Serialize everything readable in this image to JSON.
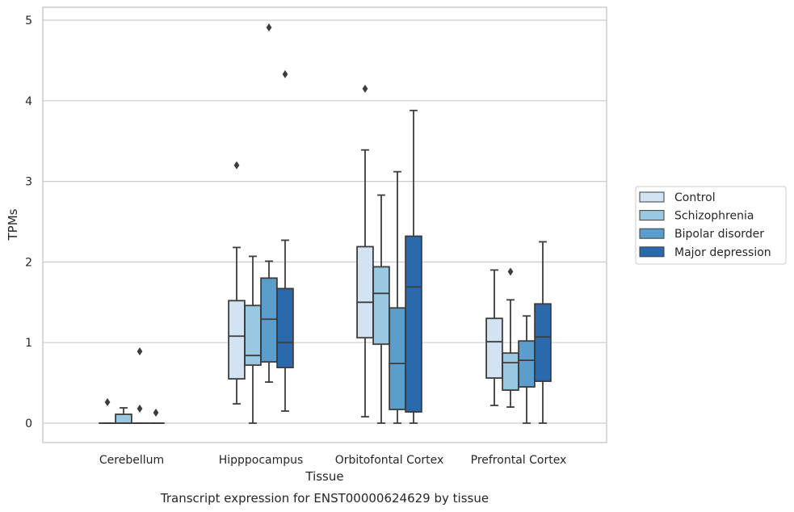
{
  "caption": "Transcript expression for ENST00000624629 by tissue",
  "chart_data": {
    "type": "box",
    "title": "",
    "xlabel": "Tissue",
    "ylabel": "TPMs",
    "ylim": [
      -0.23,
      5.17
    ],
    "yticks": [
      "0",
      "1",
      "2",
      "3",
      "4",
      "5"
    ],
    "grid": true,
    "legend_position": "right",
    "categories": [
      "Cerebellum",
      "Hipppocampus",
      "Orbitofontal Cortex",
      "Prefrontal Cortex"
    ],
    "series": [
      {
        "name": "Control",
        "color": "#d2e3f3",
        "boxes": [
          {
            "whisker_low": 0,
            "q1": 0,
            "median": 0,
            "q3": 0,
            "whisker_high": 0,
            "outliers": [
              0.26
            ]
          },
          {
            "whisker_low": 0.24,
            "q1": 0.55,
            "median": 1.08,
            "q3": 1.52,
            "whisker_high": 2.18,
            "outliers": [
              3.2
            ]
          },
          {
            "whisker_low": 0.08,
            "q1": 1.06,
            "median": 1.5,
            "q3": 2.19,
            "whisker_high": 3.39,
            "outliers": [
              4.15
            ]
          },
          {
            "whisker_low": 0.22,
            "q1": 0.56,
            "median": 1.01,
            "q3": 1.3,
            "whisker_high": 1.9,
            "outliers": []
          }
        ]
      },
      {
        "name": "Schizophrenia",
        "color": "#9ac8e0",
        "boxes": [
          {
            "whisker_low": 0,
            "q1": 0,
            "median": 0,
            "q3": 0.11,
            "whisker_high": 0.19,
            "outliers": []
          },
          {
            "whisker_low": 0,
            "q1": 0.72,
            "median": 0.84,
            "q3": 1.46,
            "whisker_high": 2.07,
            "outliers": []
          },
          {
            "whisker_low": 0,
            "q1": 0.98,
            "median": 1.61,
            "q3": 1.94,
            "whisker_high": 2.83,
            "outliers": []
          },
          {
            "whisker_low": 0.2,
            "q1": 0.41,
            "median": 0.75,
            "q3": 0.87,
            "whisker_high": 1.53,
            "outliers": [
              1.88
            ]
          }
        ]
      },
      {
        "name": "Bipolar disorder",
        "color": "#5a9ecd",
        "boxes": [
          {
            "whisker_low": 0,
            "q1": 0,
            "median": 0,
            "q3": 0,
            "whisker_high": 0,
            "outliers": [
              0.89,
              0.18
            ]
          },
          {
            "whisker_low": 0.51,
            "q1": 0.76,
            "median": 1.29,
            "q3": 1.8,
            "whisker_high": 2.01,
            "outliers": [
              4.91
            ]
          },
          {
            "whisker_low": 0,
            "q1": 0.17,
            "median": 0.74,
            "q3": 1.43,
            "whisker_high": 3.12,
            "outliers": []
          },
          {
            "whisker_low": 0,
            "q1": 0.45,
            "median": 0.78,
            "q3": 1.02,
            "whisker_high": 1.33,
            "outliers": []
          }
        ]
      },
      {
        "name": "Major depression",
        "color": "#2a69ab",
        "boxes": [
          {
            "whisker_low": 0,
            "q1": 0,
            "median": 0,
            "q3": 0,
            "whisker_high": 0,
            "outliers": [
              0.13
            ]
          },
          {
            "whisker_low": 0.15,
            "q1": 0.69,
            "median": 1.0,
            "q3": 1.67,
            "whisker_high": 2.27,
            "outliers": [
              4.33
            ]
          },
          {
            "whisker_low": 0,
            "q1": 0.14,
            "median": 1.69,
            "q3": 2.32,
            "whisker_high": 3.88,
            "outliers": []
          },
          {
            "whisker_low": 0,
            "q1": 0.52,
            "median": 1.07,
            "q3": 1.48,
            "whisker_high": 2.25,
            "outliers": []
          }
        ]
      }
    ]
  }
}
